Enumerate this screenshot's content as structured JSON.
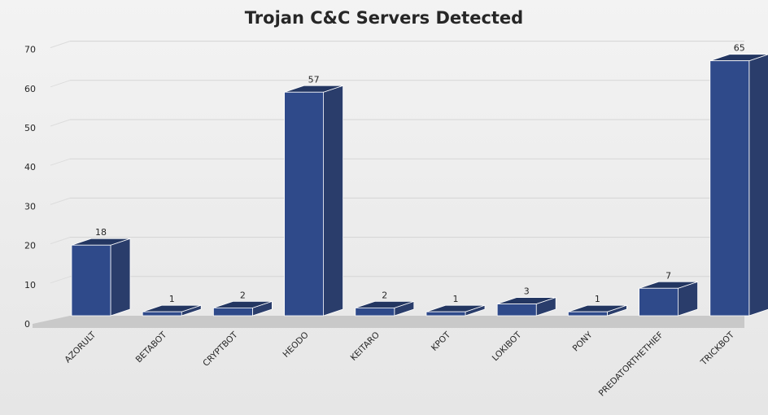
{
  "chart_data": {
    "type": "bar",
    "title": "Trojan C&C Servers Detected",
    "categories": [
      "AZORULT",
      "BETABOT",
      "CRYPTBOT",
      "HEODO",
      "KEITARO",
      "KPOT",
      "LOKIBOT",
      "PONY",
      "PREDATORTHETHIEF",
      "TRICKBOT"
    ],
    "values": [
      18,
      1,
      2,
      57,
      2,
      1,
      3,
      1,
      7,
      65
    ],
    "ylim": [
      0,
      70
    ],
    "yticks": [
      0,
      10,
      20,
      30,
      40,
      50,
      60,
      70
    ],
    "grid": true,
    "xlabel": "",
    "ylabel": "",
    "style": "3d-column",
    "bar_color": "#2f4a8a"
  }
}
